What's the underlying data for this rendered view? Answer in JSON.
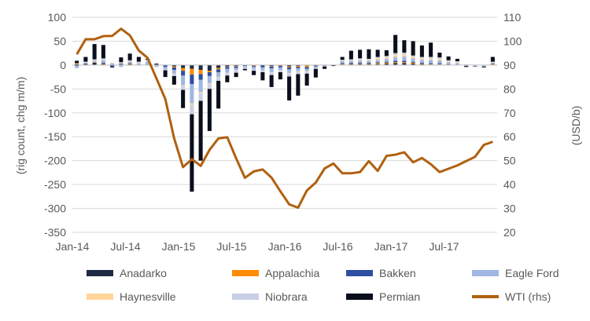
{
  "chart_data": {
    "type": "bar",
    "title": "",
    "xlabel": "",
    "ylabel": "(rig count, chg m/m)",
    "y2label": "(USD/b)",
    "ylim": [
      -350,
      100
    ],
    "y2lim": [
      20,
      110
    ],
    "yticks": [
      100,
      50,
      0,
      -50,
      -100,
      -150,
      -200,
      -250,
      -300,
      -350
    ],
    "y2ticks": [
      110,
      100,
      90,
      80,
      70,
      60,
      50,
      40,
      30,
      20
    ],
    "grid": true,
    "legend_position": "bottom",
    "x_tick_labels": [
      "Jan-14",
      "Jul-14",
      "Jan-15",
      "Jul-15",
      "Jan-16",
      "Jul-16",
      "Jan-17",
      "Jul-17"
    ],
    "x_tick_index": [
      0,
      6,
      12,
      18,
      24,
      30,
      36,
      42
    ],
    "categories": [
      "Jan-14",
      "Feb-14",
      "Mar-14",
      "Apr-14",
      "May-14",
      "Jun-14",
      "Jul-14",
      "Aug-14",
      "Sep-14",
      "Oct-14",
      "Nov-14",
      "Dec-14",
      "Jan-15",
      "Feb-15",
      "Mar-15",
      "Apr-15",
      "May-15",
      "Jun-15",
      "Jul-15",
      "Aug-15",
      "Sep-15",
      "Oct-15",
      "Nov-15",
      "Dec-15",
      "Jan-16",
      "Feb-16",
      "Mar-16",
      "Apr-16",
      "May-16",
      "Jun-16",
      "Jul-16",
      "Aug-16",
      "Sep-16",
      "Oct-16",
      "Nov-16",
      "Dec-16",
      "Jan-17",
      "Feb-17",
      "Mar-17",
      "Apr-17",
      "May-17",
      "Jun-17",
      "Jul-17",
      "Aug-17",
      "Sep-17",
      "Oct-17",
      "Nov-17",
      "Dec-17"
    ],
    "series": [
      {
        "name": "Anadarko",
        "color": "#1f2a44",
        "type": "bar",
        "values": [
          2,
          2,
          5,
          2,
          1,
          1,
          2,
          1,
          1,
          1,
          -1,
          -3,
          -6,
          -8,
          -10,
          -12,
          -6,
          -3,
          -2,
          0,
          -1,
          -2,
          -2,
          -1,
          -3,
          -2,
          -1,
          0,
          0,
          0,
          1,
          2,
          2,
          2,
          2,
          3,
          4,
          4,
          3,
          2,
          1,
          1,
          1,
          0,
          0,
          0,
          0,
          1
        ]
      },
      {
        "name": "Appalachia",
        "color": "#ff8c00",
        "type": "bar",
        "values": [
          1,
          0,
          1,
          1,
          0,
          0,
          1,
          0,
          0,
          0,
          0,
          -2,
          -6,
          -12,
          -9,
          -3,
          -3,
          -1,
          -1,
          0,
          -1,
          0,
          -1,
          -1,
          -2,
          -2,
          -3,
          -1,
          0,
          0,
          1,
          1,
          1,
          1,
          2,
          2,
          2,
          2,
          2,
          1,
          1,
          1,
          0,
          0,
          0,
          0,
          0,
          1
        ]
      },
      {
        "name": "Bakken",
        "color": "#2e4fa3",
        "type": "bar",
        "values": [
          -2,
          1,
          0,
          2,
          -3,
          2,
          1,
          0,
          0,
          0,
          -3,
          -5,
          -10,
          -20,
          -12,
          -8,
          -6,
          -4,
          -3,
          -2,
          -2,
          -3,
          -4,
          -3,
          -4,
          -3,
          -4,
          -2,
          -1,
          0,
          2,
          2,
          2,
          2,
          2,
          2,
          3,
          3,
          2,
          2,
          2,
          2,
          1,
          1,
          0,
          0,
          0,
          1
        ]
      },
      {
        "name": "Eagle Ford",
        "color": "#9fb7e2",
        "type": "bar",
        "values": [
          -3,
          2,
          3,
          5,
          2,
          -4,
          3,
          2,
          6,
          -4,
          -5,
          -8,
          -20,
          -40,
          -25,
          -15,
          -10,
          -8,
          -5,
          -3,
          -5,
          -6,
          -8,
          -6,
          -8,
          -6,
          -5,
          -3,
          -1,
          0,
          4,
          4,
          5,
          4,
          5,
          6,
          8,
          9,
          7,
          6,
          7,
          6,
          4,
          3,
          -2,
          -1,
          -2,
          2
        ]
      },
      {
        "name": "Haynesville",
        "color": "#ffd59a",
        "type": "bar",
        "values": [
          1,
          1,
          1,
          1,
          1,
          1,
          1,
          1,
          0,
          0,
          0,
          -1,
          -2,
          -3,
          -3,
          -2,
          -1,
          -1,
          -1,
          0,
          0,
          0,
          -1,
          0,
          -1,
          -1,
          -1,
          0,
          0,
          0,
          1,
          1,
          2,
          2,
          3,
          3,
          4,
          4,
          3,
          3,
          3,
          3,
          2,
          2,
          1,
          1,
          0,
          1
        ]
      },
      {
        "name": "Niobrara",
        "color": "#c9cfe6",
        "type": "bar",
        "values": [
          -2,
          1,
          2,
          3,
          1,
          2,
          2,
          3,
          4,
          0,
          -2,
          -4,
          -8,
          -20,
          -16,
          -10,
          -7,
          -5,
          -4,
          -3,
          -3,
          -4,
          -5,
          -4,
          -6,
          -5,
          -4,
          -2,
          -1,
          0,
          2,
          2,
          2,
          2,
          3,
          3,
          4,
          4,
          3,
          3,
          3,
          3,
          2,
          2,
          1,
          -1,
          -1,
          1
        ]
      },
      {
        "name": "Permian",
        "color": "#0a0f1c",
        "type": "bar",
        "values": [
          5,
          10,
          32,
          28,
          -2,
          10,
          14,
          10,
          2,
          2,
          -14,
          -18,
          -38,
          -162,
          -125,
          -88,
          -58,
          -14,
          -9,
          -3,
          -9,
          -17,
          -25,
          -15,
          -50,
          -45,
          -25,
          -18,
          -5,
          -2,
          6,
          18,
          18,
          20,
          15,
          12,
          38,
          26,
          30,
          24,
          30,
          10,
          8,
          5,
          -2,
          -1,
          -2,
          10
        ]
      },
      {
        "name": "WTI (rhs)",
        "color": "#b0600f",
        "type": "line",
        "axis": "right",
        "values": [
          94.5,
          100.8,
          100.8,
          102.1,
          102.2,
          105.2,
          102.4,
          96.1,
          93.0,
          84.4,
          75.8,
          59.3,
          47.3,
          50.6,
          47.8,
          54.5,
          59.3,
          59.8,
          51.0,
          42.8,
          45.5,
          46.3,
          42.9,
          37.2,
          31.7,
          30.3,
          37.5,
          40.8,
          46.7,
          48.8,
          44.7,
          44.7,
          45.2,
          49.8,
          45.7,
          52.0,
          52.5,
          53.5,
          49.3,
          51.1,
          48.5,
          45.2,
          46.6,
          48.0,
          49.8,
          51.6,
          56.6,
          57.9
        ]
      }
    ]
  }
}
